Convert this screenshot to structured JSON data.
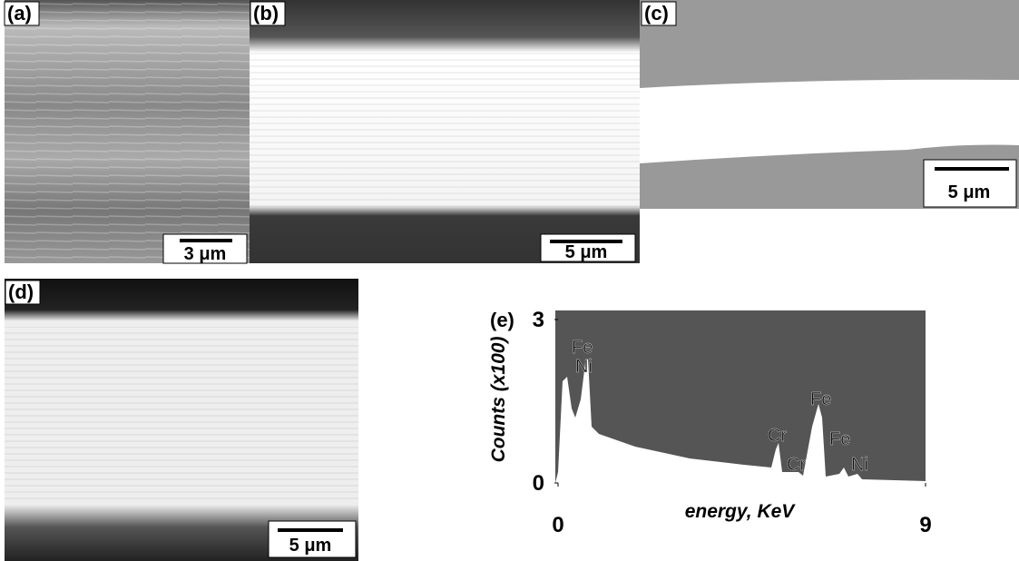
{
  "panels": [
    {
      "label": "(a)",
      "scale_bar": "3 μm"
    },
    {
      "label": "(b)",
      "scale_bar": "5 μm"
    },
    {
      "label": "(c)",
      "scale_bar": "5 μm"
    },
    {
      "label": "(d)",
      "scale_bar": "5 μm"
    }
  ],
  "spectrum": {
    "label": "(e)",
    "xlabel": "energy, KeV",
    "ylabel": "Counts (x100)",
    "xlim": [
      0,
      9
    ],
    "ylim": [
      0,
      3
    ],
    "xticks": [
      0,
      9
    ],
    "yticks": [
      0,
      3
    ],
    "peak_labels": [
      "Fe",
      "Ni",
      "Cr",
      "Cr",
      "Fe",
      "Fe",
      "Ni"
    ]
  }
}
